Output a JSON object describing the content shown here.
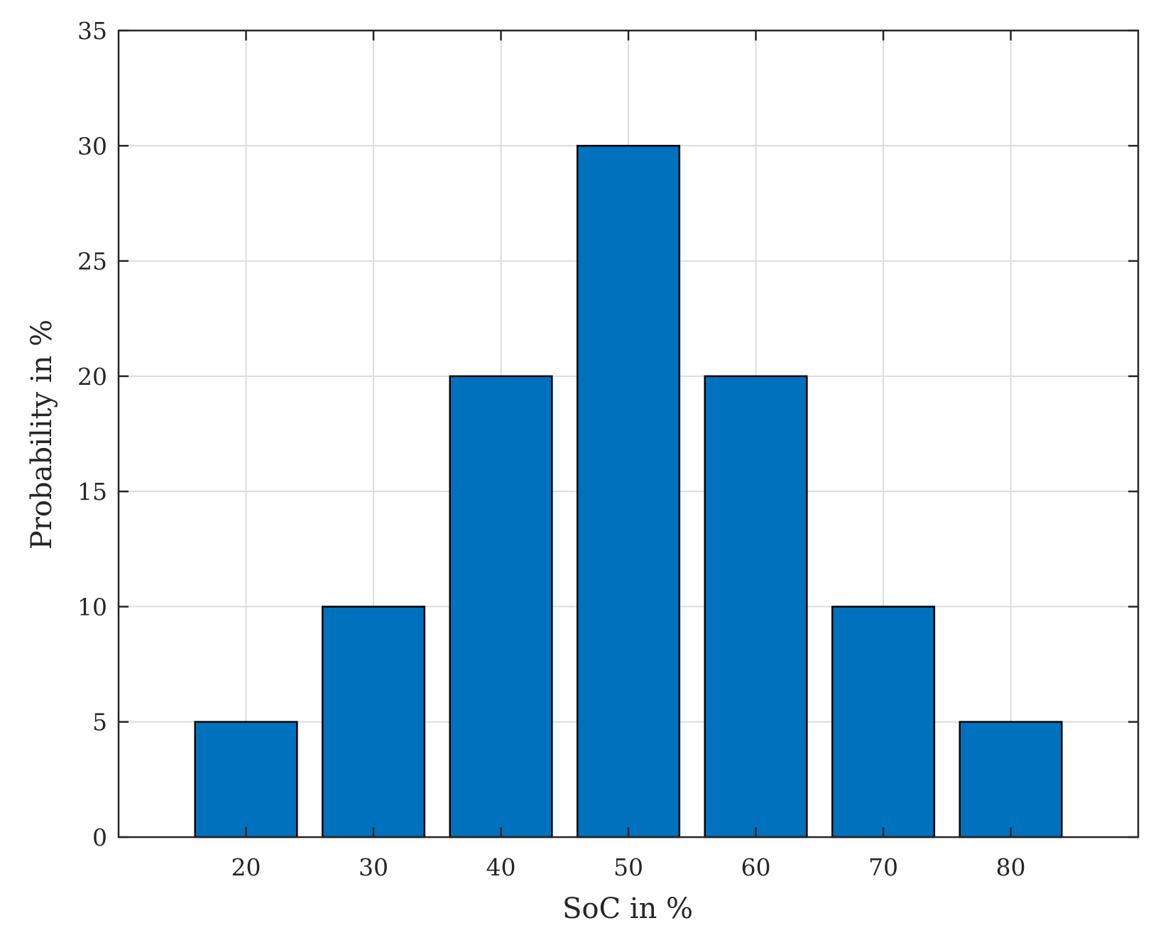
{
  "chart_data": {
    "type": "bar",
    "title": "",
    "xlabel": "SoC in %",
    "ylabel": "Probability in %",
    "categories": [
      "20",
      "30",
      "40",
      "50",
      "60",
      "70",
      "80"
    ],
    "x": [
      20,
      30,
      40,
      50,
      60,
      70,
      80
    ],
    "values": [
      5,
      10,
      20,
      30,
      20,
      10,
      5
    ],
    "xlim": [
      10,
      90
    ],
    "ylim": [
      0,
      35
    ],
    "yticks": [
      0,
      5,
      10,
      15,
      20,
      25,
      30,
      35
    ],
    "xticks": [
      20,
      30,
      40,
      50,
      60,
      70,
      80
    ],
    "grid": true,
    "colors": {
      "bar_fill": "#0072BD",
      "bar_edge": "#000000",
      "grid": "#dcdcdc",
      "axis": "#262626"
    }
  }
}
